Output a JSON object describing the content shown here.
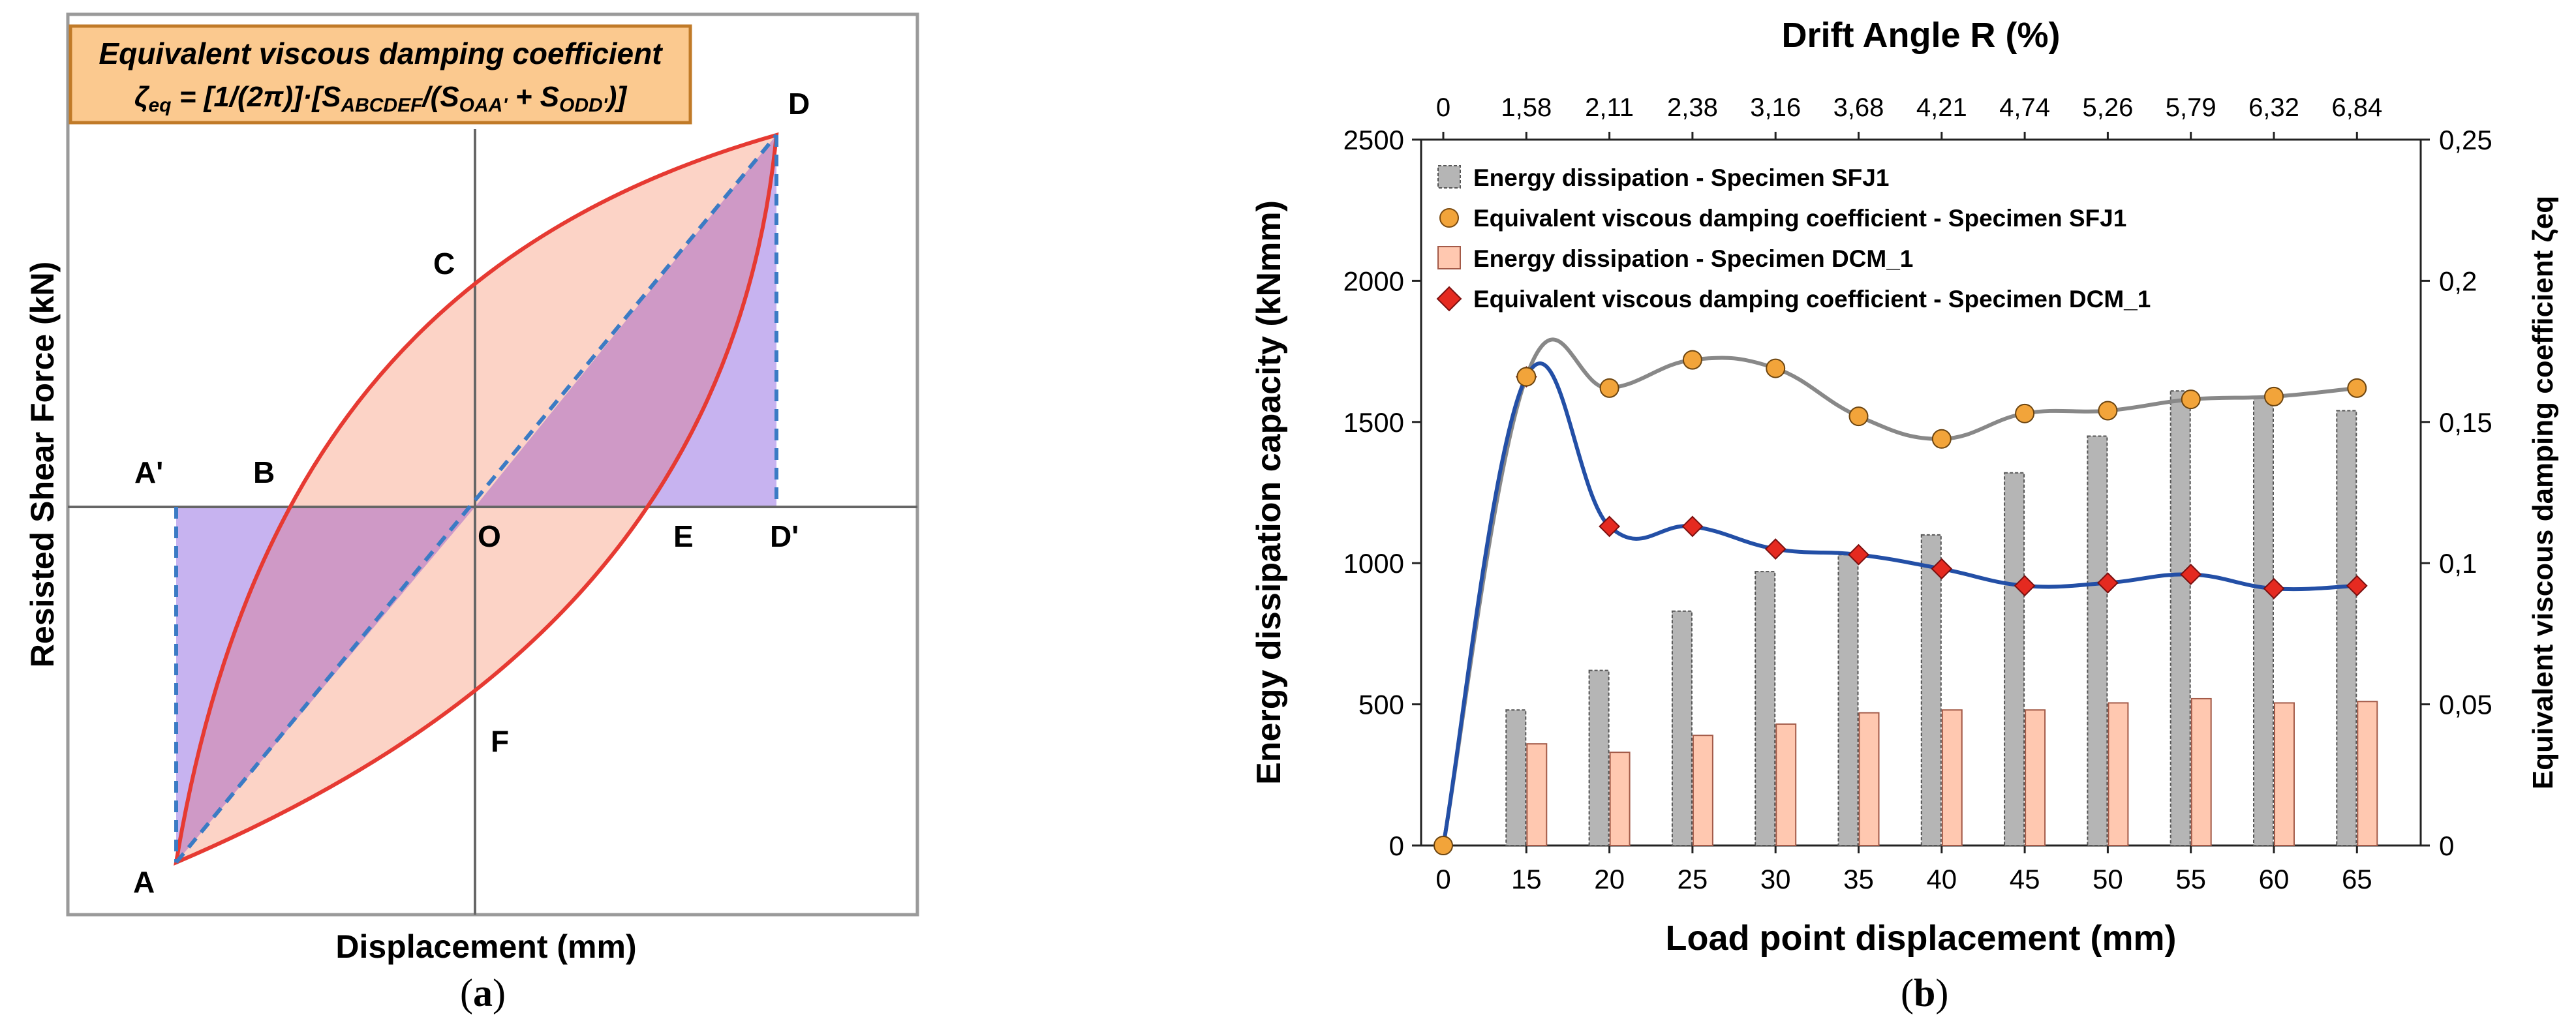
{
  "colors": {
    "red_curve": "#e63a32",
    "pink_fill": "#fcd3c6",
    "purple_fill": "#c7b3f0",
    "overlap_fill": "#cf99c6",
    "dashed": "#3b7bc4",
    "box_fill": "#fbc98f",
    "box_border": "#c07a28",
    "bar_gray": "#b5b5b5",
    "bar_gray_border": "#555555",
    "bar_salmon": "#ffc8b0",
    "bar_salmon_border": "#a35a48",
    "sfj_line": "#888888",
    "sfj_marker": "#f2a43a",
    "dcm_line": "#234fa6",
    "dcm_marker": "#e52a20"
  },
  "panel_a": {
    "caption": "(a)",
    "caption_letter": "a",
    "box_line1": "Equivalent viscous damping coefficient",
    "box_line2": "ζeq = [1/(2π)]·[SABCDEF/(SOAA' + SODD')]",
    "box_eq_prefix": "ζ",
    "box_eq_sub1": "eq",
    "box_eq_mid": " = [1/(2π)]·[S",
    "box_eq_sub2": "ABCDEF",
    "box_eq_mid2": "/(S",
    "box_eq_sub3": "OAA'",
    "box_eq_mid3": " + S",
    "box_eq_sub4": "ODD'",
    "box_eq_end": ")]",
    "xlabel": "Displacement (mm)",
    "ylabel": "Resisted Shear Force (kN)",
    "points": {
      "A": "A",
      "A_prime": "A'",
      "B": "B",
      "C": "C",
      "D": "D",
      "D_prime": "D'",
      "E": "E",
      "F": "F",
      "O": "O"
    }
  },
  "chart_data": {
    "type": "bar",
    "caption": "(b)",
    "caption_letter": "b",
    "title": "Drift Angle R (%)",
    "xlabel": "Load point displacement (mm)",
    "ylabel": "Energy dissipation capacity (kNmm)",
    "y2label": "Equivalent viscous damping coefficient ζeq",
    "categories": [
      "0",
      "15",
      "20",
      "25",
      "30",
      "35",
      "40",
      "45",
      "50",
      "55",
      "60",
      "65"
    ],
    "top_axis_labels": [
      "0",
      "1,58",
      "2,11",
      "2,38",
      "3,16",
      "3,68",
      "4,21",
      "4,74",
      "5,26",
      "5,79",
      "6,32",
      "6,84"
    ],
    "ylim": [
      0,
      2500
    ],
    "yticks": [
      "0",
      "500",
      "1000",
      "1500",
      "2000",
      "2500"
    ],
    "y2lim": [
      0,
      0.25
    ],
    "y2ticks": [
      "0",
      "0,05",
      "0,1",
      "0,15",
      "0,2",
      "0,25"
    ],
    "legend": [
      "Energy dissipation - Specimen  SFJ1",
      "Equivalent viscous damping coefficient - Specimen SFJ1",
      "Energy dissipation - Specimen  DCM_1",
      "Equivalent viscous damping coefficient - Specimen DCM_1"
    ],
    "legend_position": "top-left",
    "series": [
      {
        "name": "Energy dissipation - Specimen  SFJ1",
        "axis": "left",
        "kind": "bar",
        "values": [
          0,
          480,
          620,
          830,
          970,
          1030,
          1100,
          1320,
          1450,
          1610,
          1590,
          1540
        ]
      },
      {
        "name": "Energy dissipation - Specimen  DCM_1",
        "axis": "left",
        "kind": "bar",
        "values": [
          0,
          360,
          330,
          390,
          430,
          470,
          480,
          480,
          505,
          520,
          505,
          510
        ]
      },
      {
        "name": "Equivalent viscous damping coefficient - Specimen SFJ1",
        "axis": "right",
        "kind": "line",
        "values": [
          0,
          0.166,
          0.162,
          0.172,
          0.169,
          0.152,
          0.144,
          0.153,
          0.154,
          0.158,
          0.159,
          0.162
        ]
      },
      {
        "name": "Equivalent viscous damping coefficient - Specimen DCM_1",
        "axis": "right",
        "kind": "line",
        "values": [
          0,
          0.166,
          0.113,
          0.113,
          0.105,
          0.103,
          0.098,
          0.092,
          0.093,
          0.096,
          0.091,
          0.092
        ]
      }
    ]
  }
}
